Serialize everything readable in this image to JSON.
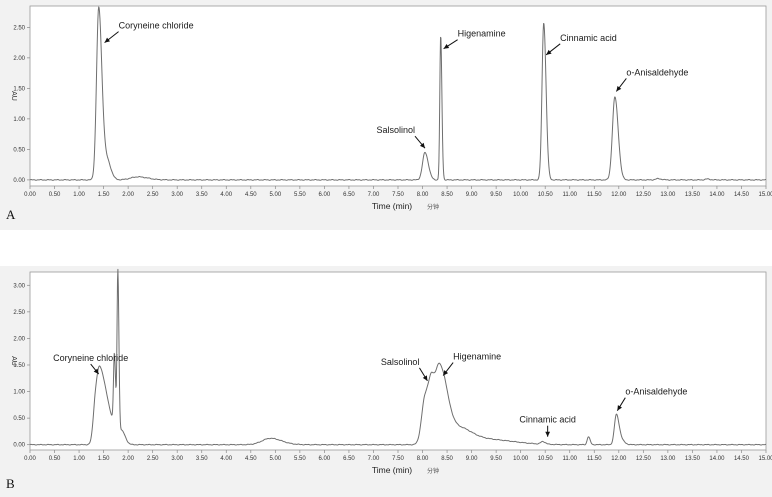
{
  "chart_data": [
    {
      "type": "line",
      "panel_label": "A",
      "xlabel": "Time (min)",
      "xlabel_secondary": "分钟",
      "ylabel": "AU",
      "xlim": [
        0,
        15
      ],
      "ylim": [
        -0.1,
        2.85
      ],
      "x_ticks": [
        "0.00",
        "0.50",
        "1.00",
        "1.50",
        "2.00",
        "2.50",
        "3.00",
        "3.50",
        "4.00",
        "4.50",
        "5.00",
        "5.50",
        "6.00",
        "6.50",
        "7.00",
        "7.50",
        "8.00",
        "8.50",
        "9.00",
        "9.50",
        "10.00",
        "10.50",
        "11.00",
        "11.50",
        "12.00",
        "12.50",
        "13.00",
        "13.50",
        "14.00",
        "14.50",
        "15.00"
      ],
      "y_ticks": [
        "0.00",
        "0.50",
        "1.00",
        "1.50",
        "2.00",
        "2.50"
      ],
      "baseline": 0.0,
      "peaks": [
        {
          "t": 1.4,
          "h": 2.78,
          "w": 0.045
        },
        {
          "t": 1.52,
          "h": 0.35,
          "w": 0.06
        },
        {
          "t": 1.62,
          "h": 0.1,
          "w": 0.05
        },
        {
          "t": 2.2,
          "h": 0.05,
          "w": 0.15
        },
        {
          "t": 8.05,
          "h": 0.45,
          "w": 0.05
        },
        {
          "t": 8.37,
          "h": 2.37,
          "w": 0.018
        },
        {
          "t": 10.47,
          "h": 2.58,
          "w": 0.035
        },
        {
          "t": 11.92,
          "h": 1.36,
          "w": 0.05
        },
        {
          "t": 12.8,
          "h": 0.02,
          "w": 0.05
        },
        {
          "t": 13.8,
          "h": 0.015,
          "w": 0.04
        }
      ],
      "annotations": [
        {
          "text": "Coryneine chloride",
          "x": 1.52,
          "y": 2.25
        },
        {
          "text": "Higenamine",
          "x": 8.43,
          "y": 2.15
        },
        {
          "text": "Salsolinol",
          "x": 8.05,
          "y": 0.52
        },
        {
          "text": "Cinnamic acid",
          "x": 10.52,
          "y": 2.05
        },
        {
          "text": "o-Anisaldehyde",
          "x": 11.95,
          "y": 1.45
        }
      ]
    },
    {
      "type": "line",
      "panel_label": "B",
      "xlabel": "Time (min)",
      "xlabel_secondary": "分钟",
      "ylabel": "AU",
      "xlim": [
        0,
        15
      ],
      "ylim": [
        -0.1,
        3.25
      ],
      "x_ticks": [
        "0.00",
        "0.50",
        "1.00",
        "1.50",
        "2.00",
        "2.50",
        "3.00",
        "3.50",
        "4.00",
        "4.50",
        "5.00",
        "5.50",
        "6.00",
        "6.50",
        "7.00",
        "7.50",
        "8.00",
        "8.50",
        "9.00",
        "9.50",
        "10.00",
        "10.50",
        "11.00",
        "11.50",
        "12.00",
        "12.50",
        "13.00",
        "13.50",
        "14.00",
        "14.50",
        "15.00"
      ],
      "y_ticks": [
        "0.00",
        "0.50",
        "1.00",
        "1.50",
        "2.00",
        "2.50",
        "3.00"
      ],
      "baseline": 0.0,
      "peaks": [
        {
          "t": 1.33,
          "h": 0.55,
          "w": 0.045
        },
        {
          "t": 1.43,
          "h": 1.2,
          "w": 0.07
        },
        {
          "t": 1.6,
          "h": 0.55,
          "w": 0.1
        },
        {
          "t": 1.72,
          "h": 1.35,
          "w": 0.018
        },
        {
          "t": 1.79,
          "h": 3.05,
          "w": 0.016
        },
        {
          "t": 1.88,
          "h": 0.2,
          "w": 0.05
        },
        {
          "t": 4.9,
          "h": 0.12,
          "w": 0.17
        },
        {
          "t": 8.05,
          "h": 0.85,
          "w": 0.07
        },
        {
          "t": 8.2,
          "h": 1.0,
          "w": 0.07
        },
        {
          "t": 8.35,
          "h": 1.02,
          "w": 0.07
        },
        {
          "t": 8.48,
          "h": 0.55,
          "w": 0.08
        },
        {
          "t": 8.7,
          "h": 0.3,
          "w": 0.2
        },
        {
          "t": 9.3,
          "h": 0.1,
          "w": 0.4
        },
        {
          "t": 10.45,
          "h": 0.05,
          "w": 0.04
        },
        {
          "t": 11.38,
          "h": 0.15,
          "w": 0.025
        },
        {
          "t": 11.95,
          "h": 0.56,
          "w": 0.04
        },
        {
          "t": 12.05,
          "h": 0.08,
          "w": 0.05
        }
      ],
      "annotations": [
        {
          "text": "Coryneine chloride",
          "x": 1.4,
          "y": 1.33
        },
        {
          "text": "Salsolinol",
          "x": 8.1,
          "y": 1.2
        },
        {
          "text": "Higenamine",
          "x": 8.42,
          "y": 1.3
        },
        {
          "text": "Cinnamic acid",
          "x": 10.55,
          "y": 0.15
        },
        {
          "text": "o-Anisaldehyde",
          "x": 11.97,
          "y": 0.64
        }
      ]
    }
  ]
}
